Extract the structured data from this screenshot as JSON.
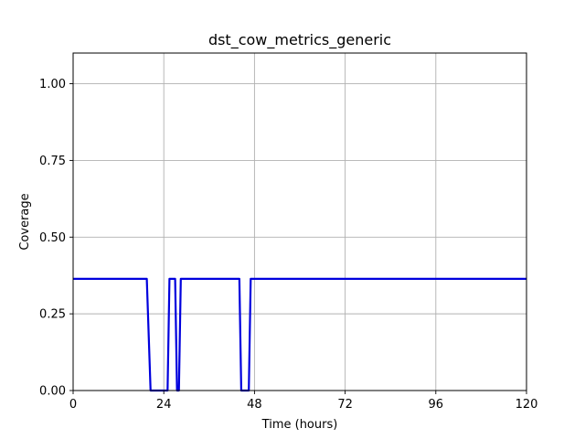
{
  "chart_data": {
    "type": "line",
    "title": "dst_cow_metrics_generic",
    "xlabel": "Time (hours)",
    "ylabel": "Coverage",
    "xlim": [
      0,
      120
    ],
    "ylim": [
      0,
      1.1
    ],
    "xticks": [
      0,
      24,
      48,
      72,
      96,
      120
    ],
    "xtick_labels": [
      "0",
      "24",
      "48",
      "72",
      "96",
      "120"
    ],
    "yticks": [
      0,
      0.25,
      0.5,
      0.75,
      1.0
    ],
    "ytick_labels": [
      "0.00",
      "0.25",
      "0.50",
      "0.75",
      "1.00"
    ],
    "grid": true,
    "legend": "none",
    "series": [
      {
        "color": "#0000dd",
        "x": [
          0,
          19.5,
          20.5,
          25,
          25.5,
          27,
          27.5,
          28,
          28.5,
          44,
          44.5,
          46.5,
          47,
          120
        ],
        "y": [
          0.364,
          0.364,
          0,
          0,
          0.364,
          0.364,
          0,
          0,
          0.364,
          0.364,
          0,
          0,
          0.364,
          0.364
        ]
      }
    ]
  }
}
